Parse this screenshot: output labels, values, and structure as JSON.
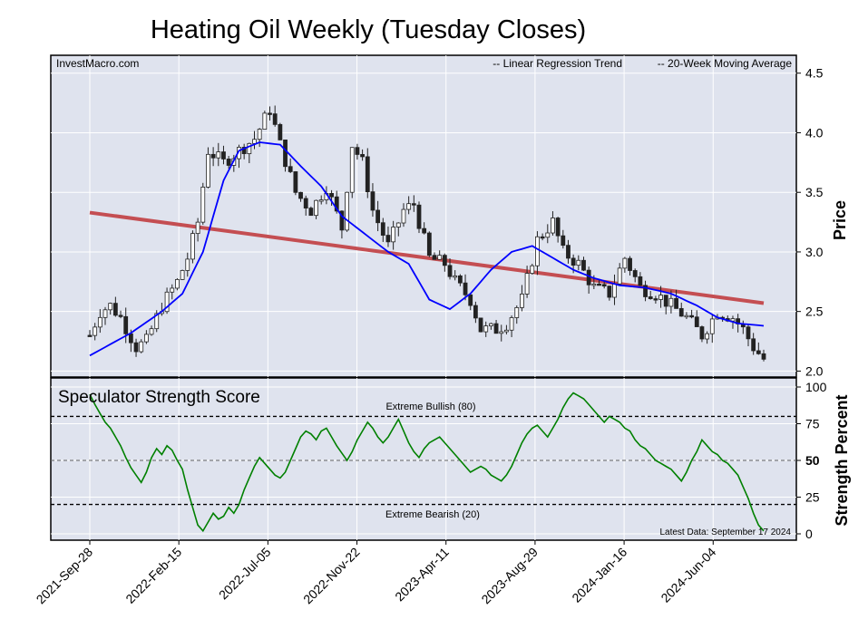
{
  "title": "Heating Oil Weekly (Tuesday Closes)",
  "source_label": "InvestMacro.com",
  "colors": {
    "panel_bg": "#dfe3ee",
    "grid": "#ffffff",
    "regression": "#c44e52",
    "moving_average": "#0000ff",
    "strength": "#008000",
    "legend_regression_text": "#8b0000",
    "legend_ma_text": "#0000ff"
  },
  "legend": {
    "regression": "-- Linear Regression Trend",
    "moving_average": "-- 20-Week Moving Average"
  },
  "strength_panel": {
    "title": "Speculator Strength Score",
    "bullish_label": "Extreme Bullish (80)",
    "bearish_label": "Extreme Bearish (20)",
    "latest_label": "Latest Data: September 17 2024",
    "highlight_tick": "50"
  },
  "chart_data": [
    {
      "type": "candlestick",
      "ylabel": "Price",
      "ylim": [
        1.95,
        4.65
      ],
      "yticks": [
        "2.0",
        "2.5",
        "3.0",
        "3.5",
        "4.0",
        "4.5"
      ],
      "x_ticks": [
        "2021-Sep-28",
        "2022-Feb-15",
        "2022-Jul-05",
        "2022-Nov-22",
        "2023-Apr-11",
        "2023-Aug-29",
        "2024-Jan-16",
        "2024-Jun-04"
      ],
      "close_anchors": [
        [
          0,
          2.3
        ],
        [
          2,
          2.5
        ],
        [
          4,
          2.55
        ],
        [
          6,
          2.45
        ],
        [
          9,
          2.2
        ],
        [
          11,
          2.25
        ],
        [
          14,
          2.55
        ],
        [
          17,
          2.75
        ],
        [
          19,
          2.95
        ],
        [
          21,
          3.25
        ],
        [
          23,
          3.85
        ],
        [
          26,
          3.75
        ],
        [
          29,
          3.85
        ],
        [
          32,
          3.95
        ],
        [
          35,
          4.2
        ],
        [
          37,
          3.9
        ],
        [
          40,
          3.5
        ],
        [
          43,
          3.35
        ],
        [
          46,
          3.55
        ],
        [
          49,
          3.2
        ],
        [
          51,
          3.9
        ],
        [
          53,
          3.75
        ],
        [
          55,
          3.35
        ],
        [
          58,
          3.05
        ],
        [
          61,
          3.35
        ],
        [
          63,
          3.4
        ],
        [
          66,
          2.95
        ],
        [
          69,
          2.9
        ],
        [
          71,
          2.75
        ],
        [
          74,
          2.6
        ],
        [
          76,
          2.35
        ],
        [
          79,
          2.35
        ],
        [
          81,
          2.4
        ],
        [
          84,
          2.6
        ],
        [
          87,
          3.1
        ],
        [
          90,
          3.25
        ],
        [
          92,
          3.0
        ],
        [
          95,
          2.9
        ],
        [
          98,
          2.7
        ],
        [
          101,
          2.65
        ],
        [
          104,
          2.95
        ],
        [
          107,
          2.7
        ],
        [
          110,
          2.65
        ],
        [
          113,
          2.55
        ],
        [
          116,
          2.45
        ],
        [
          119,
          2.3
        ],
        [
          122,
          2.5
        ],
        [
          125,
          2.45
        ],
        [
          127,
          2.35
        ],
        [
          129,
          2.2
        ],
        [
          131,
          2.1
        ]
      ],
      "regression_line": {
        "start": 3.33,
        "end": 2.57
      },
      "moving_average_anchors": [
        [
          0,
          2.13
        ],
        [
          8,
          2.32
        ],
        [
          14,
          2.5
        ],
        [
          18,
          2.65
        ],
        [
          22,
          3.0
        ],
        [
          26,
          3.6
        ],
        [
          29,
          3.85
        ],
        [
          33,
          3.92
        ],
        [
          37,
          3.9
        ],
        [
          41,
          3.72
        ],
        [
          45,
          3.55
        ],
        [
          49,
          3.3
        ],
        [
          55,
          3.1
        ],
        [
          58,
          3.0
        ],
        [
          62,
          2.9
        ],
        [
          66,
          2.6
        ],
        [
          70,
          2.52
        ],
        [
          74,
          2.65
        ],
        [
          78,
          2.85
        ],
        [
          82,
          3.0
        ],
        [
          86,
          3.05
        ],
        [
          90,
          2.95
        ],
        [
          94,
          2.85
        ],
        [
          98,
          2.78
        ],
        [
          103,
          2.72
        ],
        [
          108,
          2.7
        ],
        [
          113,
          2.65
        ],
        [
          118,
          2.55
        ],
        [
          122,
          2.45
        ],
        [
          126,
          2.4
        ],
        [
          131,
          2.38
        ]
      ],
      "n_weeks": 132
    },
    {
      "type": "line",
      "ylabel": "Strength Percent",
      "ylim": [
        0,
        100
      ],
      "yticks": [
        "0",
        "25",
        "50",
        "75",
        "100"
      ],
      "thresholds": [
        80,
        50,
        20
      ],
      "series": [
        {
          "values": [
            95,
            88,
            82,
            76,
            72,
            66,
            60,
            52,
            45,
            40,
            35,
            42,
            52,
            58,
            54,
            60,
            57,
            50,
            44,
            30,
            18,
            6,
            2,
            8,
            14,
            10,
            12,
            18,
            14,
            20,
            30,
            38,
            46,
            52,
            48,
            44,
            40,
            38,
            42,
            50,
            58,
            66,
            70,
            68,
            64,
            70,
            72,
            66,
            60,
            55,
            50,
            56,
            64,
            70,
            76,
            72,
            66,
            62,
            66,
            72,
            78,
            70,
            62,
            56,
            52,
            58,
            62,
            64,
            66,
            62,
            58,
            54,
            50,
            46,
            42,
            44,
            46,
            44,
            40,
            38,
            36,
            40,
            46,
            54,
            62,
            68,
            72,
            74,
            70,
            66,
            72,
            78,
            86,
            92,
            96,
            94,
            92,
            88,
            84,
            80,
            76,
            80,
            78,
            76,
            72,
            70,
            64,
            60,
            58,
            54,
            50,
            48,
            46,
            44,
            40,
            36,
            42,
            50,
            56,
            64,
            60,
            56,
            54,
            50,
            48,
            44,
            40,
            32,
            24,
            14,
            6,
            2
          ]
        }
      ]
    }
  ]
}
